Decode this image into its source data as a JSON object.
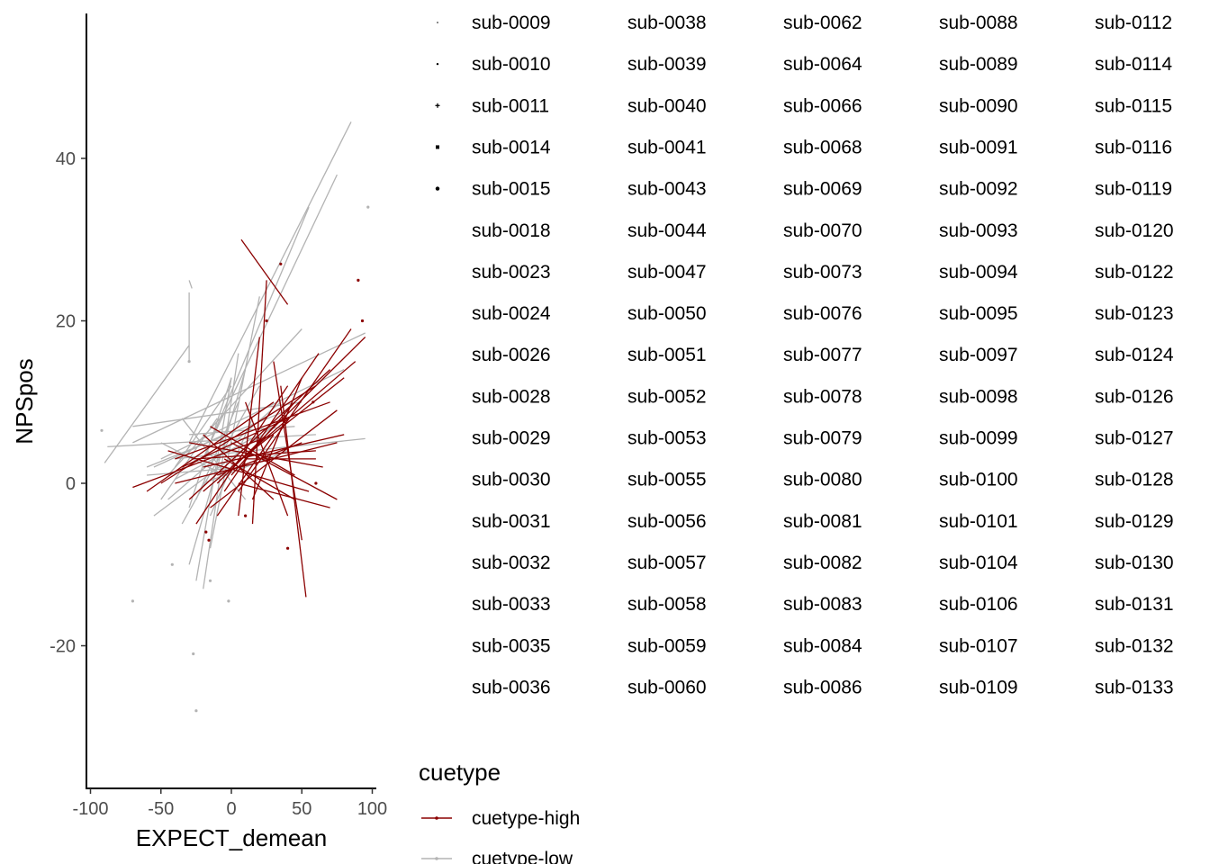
{
  "chart_data": {
    "type": "line",
    "xlabel": "EXPECT_demean",
    "ylabel": "NPSpos",
    "xlim": [
      -102,
      105
    ],
    "ylim": [
      -37,
      58
    ],
    "x_ticks": [
      -100,
      -50,
      0,
      50,
      100
    ],
    "x_tick_labels": [
      "-100",
      "-50",
      "0",
      "50",
      "100"
    ],
    "y_ticks": [
      -20,
      0,
      20,
      40
    ],
    "y_tick_labels": [
      "-20",
      "0",
      "20",
      "40"
    ],
    "grid": false,
    "legend_position": "right",
    "subject_legend": {
      "labels": [
        "sub-0009",
        "sub-0010",
        "sub-0011",
        "sub-0014",
        "sub-0015",
        "sub-0018",
        "sub-0023",
        "sub-0024",
        "sub-0026",
        "sub-0028",
        "sub-0029",
        "sub-0030",
        "sub-0031",
        "sub-0032",
        "sub-0033",
        "sub-0035",
        "sub-0036",
        "sub-0038",
        "sub-0039",
        "sub-0040",
        "sub-0041",
        "sub-0043",
        "sub-0044",
        "sub-0047",
        "sub-0050",
        "sub-0051",
        "sub-0052",
        "sub-0053",
        "sub-0055",
        "sub-0056",
        "sub-0057",
        "sub-0058",
        "sub-0059",
        "sub-0060",
        "sub-0062",
        "sub-0064",
        "sub-0066",
        "sub-0068",
        "sub-0069",
        "sub-0070",
        "sub-0073",
        "sub-0076",
        "sub-0077",
        "sub-0078",
        "sub-0079",
        "sub-0080",
        "sub-0081",
        "sub-0082",
        "sub-0083",
        "sub-0084",
        "sub-0086",
        "sub-0088",
        "sub-0089",
        "sub-0090",
        "sub-0091",
        "sub-0092",
        "sub-0093",
        "sub-0094",
        "sub-0095",
        "sub-0097",
        "sub-0098",
        "sub-0099",
        "sub-0100",
        "sub-0101",
        "sub-0104",
        "sub-0106",
        "sub-0107",
        "sub-0109",
        "sub-0112",
        "sub-0114",
        "sub-0115",
        "sub-0116",
        "sub-0119",
        "sub-0120",
        "sub-0122",
        "sub-0123",
        "sub-0124",
        "sub-0126",
        "sub-0127",
        "sub-0128",
        "sub-0129",
        "sub-0130",
        "sub-0131",
        "sub-0132",
        "sub-0133"
      ],
      "rows_per_column": 17,
      "symbols": [
        "dot-tiny",
        "dot-small",
        "plus",
        "square",
        "dot"
      ]
    },
    "color_legend": {
      "title": "cuetype",
      "entries": [
        {
          "label": "cuetype-high",
          "color": "#8b0000"
        },
        {
          "label": "cuetype-low",
          "color": "#b3b3b3"
        }
      ]
    },
    "series": [
      {
        "name": "cuetype-high",
        "color": "#8b0000",
        "segments": [
          [
            [
              7,
              30
            ],
            [
              40,
              22
            ]
          ],
          [
            [
              5,
              -1
            ],
            [
              85,
              19
            ]
          ],
          [
            [
              -10,
              0
            ],
            [
              95,
              18
            ]
          ],
          [
            [
              0,
              2
            ],
            [
              80,
              13
            ]
          ],
          [
            [
              -30,
              -2
            ],
            [
              70,
              14
            ]
          ],
          [
            [
              -20,
              -1
            ],
            [
              88,
              15
            ]
          ],
          [
            [
              -25,
              3
            ],
            [
              60,
              4
            ]
          ],
          [
            [
              -40,
              0
            ],
            [
              75,
              5
            ]
          ],
          [
            [
              -50,
              0
            ],
            [
              60,
              12
            ]
          ],
          [
            [
              -60,
              -1
            ],
            [
              30,
              10
            ]
          ],
          [
            [
              -15,
              -3
            ],
            [
              75,
              9
            ]
          ],
          [
            [
              -10,
              1
            ],
            [
              50,
              5
            ]
          ],
          [
            [
              -40,
              3
            ],
            [
              70,
              10
            ]
          ],
          [
            [
              -20,
              2
            ],
            [
              80,
              6
            ]
          ],
          [
            [
              30,
              15
            ],
            [
              50,
              -7
            ]
          ],
          [
            [
              35,
              12
            ],
            [
              53,
              -14
            ]
          ],
          [
            [
              25,
              25
            ],
            [
              15,
              -5
            ]
          ],
          [
            [
              20,
              18
            ],
            [
              5,
              -4
            ]
          ],
          [
            [
              10,
              10
            ],
            [
              40,
              -4
            ]
          ],
          [
            [
              -45,
              4
            ],
            [
              55,
              -1
            ]
          ],
          [
            [
              -30,
              5
            ],
            [
              65,
              2
            ]
          ],
          [
            [
              -5,
              3
            ],
            [
              45,
              -2
            ]
          ],
          [
            [
              -70,
              -0.5
            ],
            [
              30,
              6
            ]
          ],
          [
            [
              -15,
              7
            ],
            [
              45,
              1
            ]
          ],
          [
            [
              0,
              1
            ],
            [
              45,
              10
            ]
          ],
          [
            [
              -25,
              -5
            ],
            [
              40,
              12
            ]
          ],
          [
            [
              5,
              0
            ],
            [
              70,
              -3
            ]
          ],
          [
            [
              -35,
              2
            ],
            [
              40,
              8
            ]
          ],
          [
            [
              10,
              3
            ],
            [
              60,
              3
            ]
          ],
          [
            [
              -10,
              -4
            ],
            [
              30,
              6
            ]
          ],
          [
            [
              15,
              -2
            ],
            [
              50,
              13
            ]
          ],
          [
            [
              -20,
              6
            ],
            [
              30,
              -2
            ]
          ],
          [
            [
              0,
              5
            ],
            [
              75,
              -2
            ]
          ],
          [
            [
              -5,
              -1
            ],
            [
              62,
              16
            ]
          ]
        ]
      },
      {
        "name": "cuetype-low",
        "color": "#b3b3b3",
        "segments": [
          [
            [
              -30,
              5
            ],
            [
              85,
              44.5
            ]
          ],
          [
            [
              -15,
              5
            ],
            [
              75,
              38
            ]
          ],
          [
            [
              -20,
              3
            ],
            [
              55,
              34
            ]
          ],
          [
            [
              -90,
              2.5
            ],
            [
              -30,
              17
            ]
          ],
          [
            [
              -30,
              25
            ],
            [
              -28,
              24
            ]
          ],
          [
            [
              -30,
              23.5
            ],
            [
              -30,
              15
            ]
          ],
          [
            [
              -70,
              7
            ],
            [
              50,
              10
            ]
          ],
          [
            [
              -70,
              5
            ],
            [
              95,
              18.5
            ]
          ],
          [
            [
              -88,
              4.5
            ],
            [
              60,
              6
            ]
          ],
          [
            [
              -50,
              3
            ],
            [
              80,
              14
            ]
          ],
          [
            [
              -40,
              3
            ],
            [
              95,
              5.5
            ]
          ],
          [
            [
              -60,
              2
            ],
            [
              40,
              9
            ]
          ],
          [
            [
              -45,
              1
            ],
            [
              50,
              19
            ]
          ],
          [
            [
              -20,
              -13
            ],
            [
              5,
              16
            ]
          ],
          [
            [
              -30,
              -10
            ],
            [
              10,
              14
            ]
          ],
          [
            [
              -35,
              -5
            ],
            [
              20,
              12
            ]
          ],
          [
            [
              -25,
              -12
            ],
            [
              0,
              13
            ]
          ],
          [
            [
              -15,
              -8
            ],
            [
              20,
              23
            ]
          ],
          [
            [
              -55,
              -4
            ],
            [
              30,
              7
            ]
          ],
          [
            [
              -40,
              2
            ],
            [
              0,
              12
            ]
          ],
          [
            [
              -20,
              0
            ],
            [
              40,
              4
            ]
          ],
          [
            [
              -40,
              0.5
            ],
            [
              20,
              6
            ]
          ],
          [
            [
              -50,
              5
            ],
            [
              -5,
              1
            ]
          ],
          [
            [
              -60,
              1
            ],
            [
              10,
              2
            ]
          ],
          [
            [
              -35,
              8
            ],
            [
              10,
              -2
            ]
          ],
          [
            [
              -10,
              8
            ],
            [
              -50,
              -2
            ]
          ],
          [
            [
              -30,
              -3
            ],
            [
              0,
              13
            ]
          ],
          [
            [
              -45,
              -2
            ],
            [
              35,
              10
            ]
          ],
          [
            [
              -30,
              6
            ],
            [
              45,
              7
            ]
          ],
          [
            [
              -15,
              -4
            ],
            [
              15,
              8
            ]
          ],
          [
            [
              -55,
              2
            ],
            [
              -5,
              6
            ]
          ],
          [
            [
              -25,
              -2
            ],
            [
              5,
              10
            ]
          ]
        ]
      }
    ],
    "points": [
      {
        "x": 97,
        "y": 34,
        "series": "cuetype-low"
      },
      {
        "x": -92,
        "y": 6.5,
        "series": "cuetype-low"
      },
      {
        "x": -27,
        "y": -21,
        "series": "cuetype-low"
      },
      {
        "x": -25,
        "y": -28,
        "series": "cuetype-low"
      },
      {
        "x": -42,
        "y": -10,
        "series": "cuetype-low"
      },
      {
        "x": -70,
        "y": -14.5,
        "series": "cuetype-low"
      },
      {
        "x": -2,
        "y": -14.5,
        "series": "cuetype-low"
      },
      {
        "x": -30,
        "y": 15,
        "series": "cuetype-low"
      },
      {
        "x": -15,
        "y": -12,
        "series": "cuetype-low"
      },
      {
        "x": 35,
        "y": 27,
        "series": "cuetype-high"
      },
      {
        "x": 90,
        "y": 25,
        "series": "cuetype-high"
      },
      {
        "x": 93,
        "y": 20,
        "series": "cuetype-high"
      },
      {
        "x": -16,
        "y": -7,
        "series": "cuetype-high"
      },
      {
        "x": -18,
        "y": -6,
        "series": "cuetype-high"
      },
      {
        "x": 25,
        "y": 20,
        "series": "cuetype-high"
      },
      {
        "x": 58,
        "y": 10,
        "series": "cuetype-high"
      },
      {
        "x": 60,
        "y": 0,
        "series": "cuetype-high"
      },
      {
        "x": 40,
        "y": -8,
        "series": "cuetype-high"
      },
      {
        "x": 10,
        "y": -4,
        "series": "cuetype-high"
      }
    ]
  }
}
